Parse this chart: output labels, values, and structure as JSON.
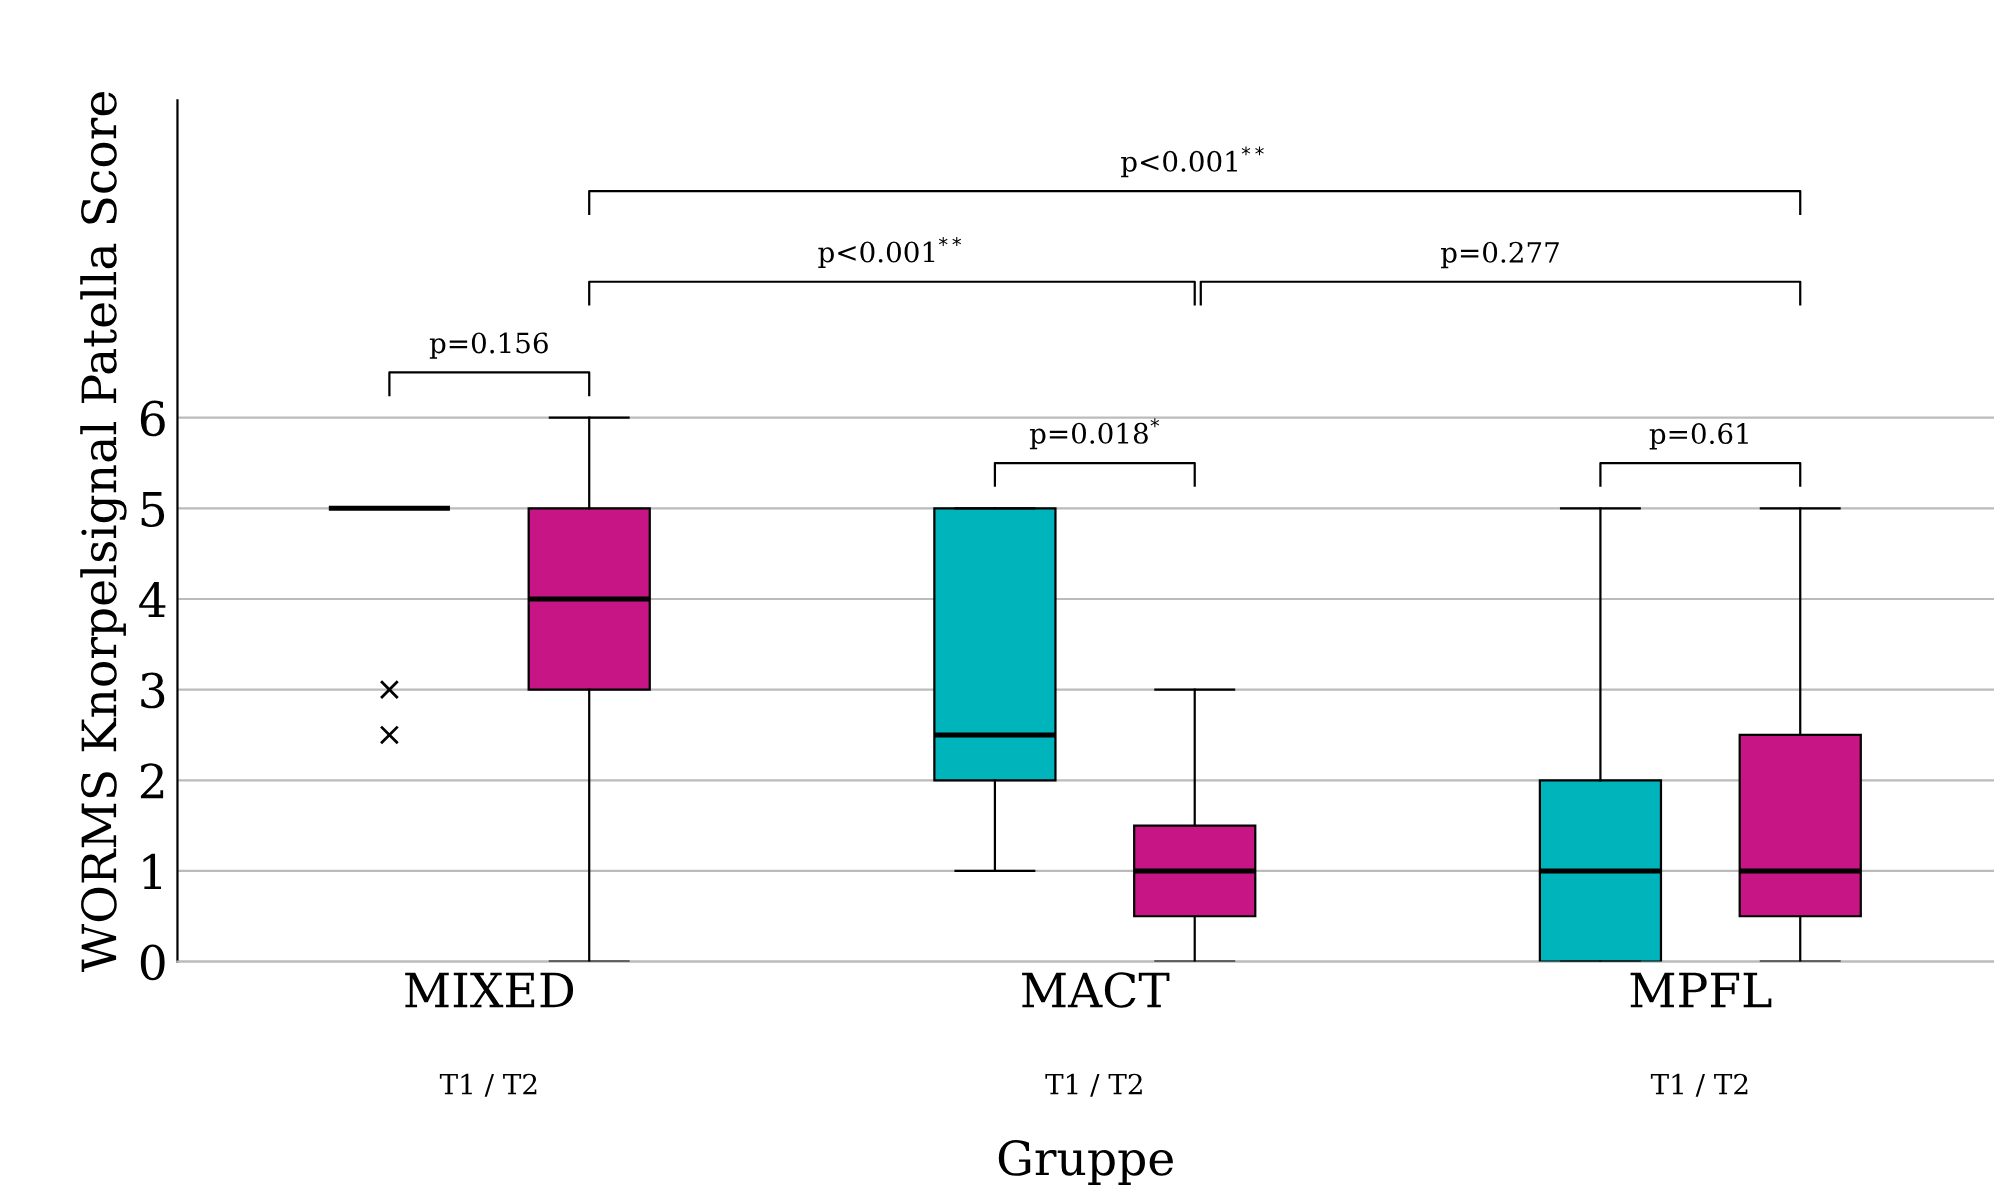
{
  "chart_data": {
    "type": "box",
    "xlabel": "Gruppe",
    "ylabel": "WORMS Knorpelsignal Patella Score",
    "categories": [
      "MIXED",
      "MACT",
      "MPFL"
    ],
    "series": [
      {
        "color": "#00b4bc",
        "boxes": [
          {
            "low": 5,
            "q1": 5,
            "median": 5,
            "q3": 5,
            "high": 5,
            "outliers": [
              3,
              2.5
            ]
          },
          {
            "low": 1,
            "q1": 2,
            "median": 2.5,
            "q3": 5,
            "high": 5
          },
          {
            "low": 0,
            "q1": 0,
            "median": 1,
            "q3": 2,
            "high": 5
          }
        ]
      },
      {
        "color": "#c71585",
        "boxes": [
          {
            "low": 0,
            "q1": 3,
            "median": 4,
            "q3": 5,
            "high": 6
          },
          {
            "low": 0,
            "q1": 0.5,
            "median": 1,
            "q3": 1.5,
            "high": 3
          },
          {
            "low": 0,
            "q1": 0.5,
            "median": 1,
            "q3": 2.5,
            "high": 5
          }
        ]
      }
    ],
    "ylim": [
      0,
      9.5
    ],
    "yticks": [
      0,
      1,
      2,
      3,
      4,
      5,
      6
    ],
    "grid": "y",
    "legend": false,
    "annotations": [
      "p=0.156",
      "p=0.018$^{*}$",
      "p=0.61",
      "p<0.001$^{**}$",
      "p=0.277",
      "p<0.001$^{**}$",
      "T1 / T2",
      "T1 / T2",
      "T1 / T2"
    ]
  }
}
